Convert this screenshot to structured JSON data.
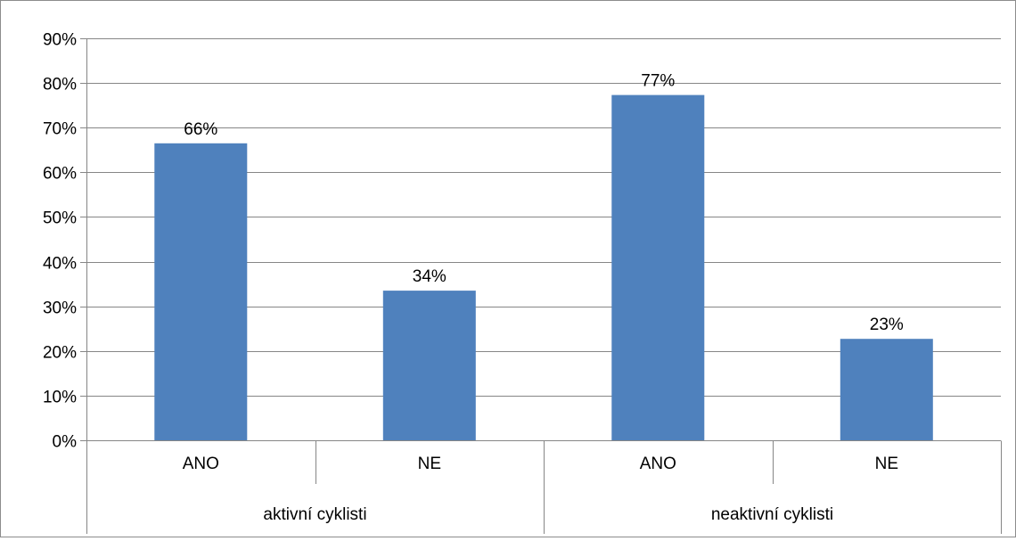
{
  "chart_data": {
    "type": "bar",
    "groups": [
      {
        "label": "aktivní cyklisti",
        "categories": [
          "ANO",
          "NE"
        ]
      },
      {
        "label": "neaktivní cyklisti",
        "categories": [
          "ANO",
          "NE"
        ]
      }
    ],
    "categories": [
      "ANO",
      "NE",
      "ANO",
      "NE"
    ],
    "values": [
      66.5,
      33.5,
      77.3,
      22.7
    ],
    "data_labels": [
      "66%",
      "34%",
      "77%",
      "23%"
    ],
    "ylim": [
      0,
      90
    ],
    "yticks": [
      0,
      10,
      20,
      30,
      40,
      50,
      60,
      70,
      80,
      90
    ],
    "ytick_labels": [
      "0%",
      "10%",
      "20%",
      "30%",
      "40%",
      "50%",
      "60%",
      "70%",
      "80%",
      "90%"
    ],
    "grid": true,
    "legend": "none",
    "bar_color": "#4f81bd",
    "grid_color": "#868686"
  }
}
